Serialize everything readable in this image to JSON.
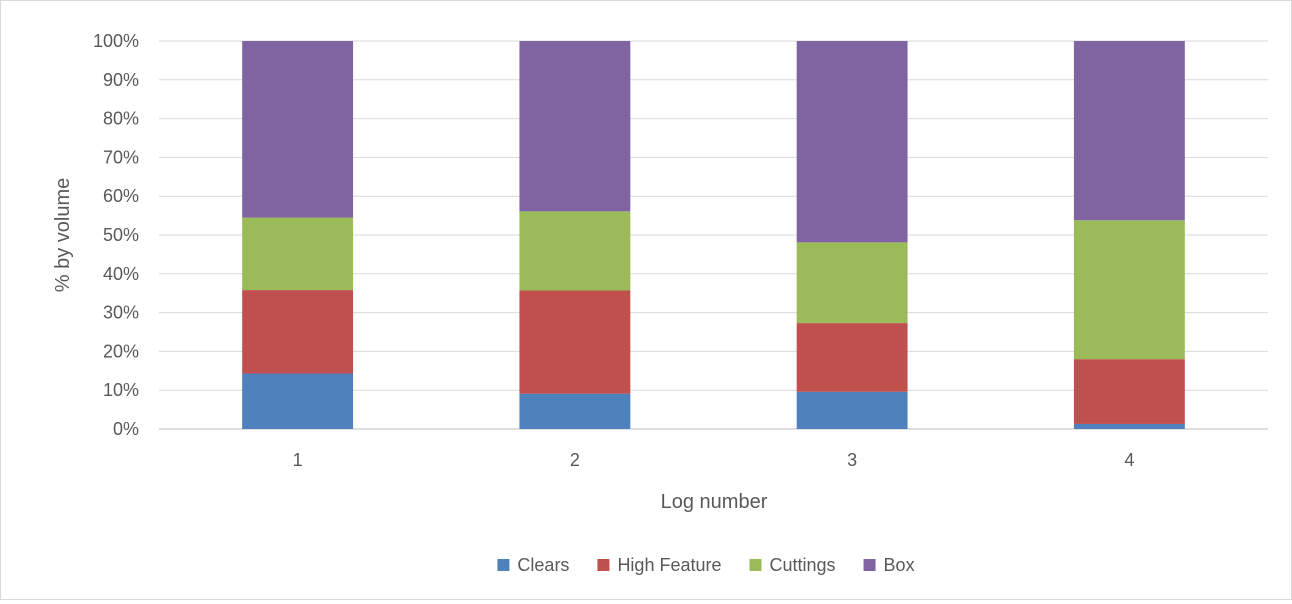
{
  "chart_data": {
    "type": "bar",
    "stacked": "percent",
    "title": "",
    "xlabel": "Log number",
    "ylabel": "% by volume",
    "categories": [
      "1",
      "2",
      "3",
      "4"
    ],
    "ylim": [
      0,
      100
    ],
    "yticks": [
      "0%",
      "10%",
      "20%",
      "30%",
      "40%",
      "50%",
      "60%",
      "70%",
      "80%",
      "90%",
      "100%"
    ],
    "grid": true,
    "legend_position": "bottom",
    "series": [
      {
        "name": "Clears",
        "color": "#4f81bd",
        "values": [
          14.3,
          9.1,
          9.6,
          1.3
        ]
      },
      {
        "name": "High Feature",
        "color": "#c0504d",
        "values": [
          21.5,
          26.6,
          17.7,
          16.7
        ]
      },
      {
        "name": "Cuttings",
        "color": "#9bbb59",
        "values": [
          18.7,
          20.4,
          20.8,
          35.8
        ]
      },
      {
        "name": "Box",
        "color": "#8064a2",
        "values": [
          45.5,
          43.9,
          51.9,
          46.2
        ]
      }
    ]
  }
}
